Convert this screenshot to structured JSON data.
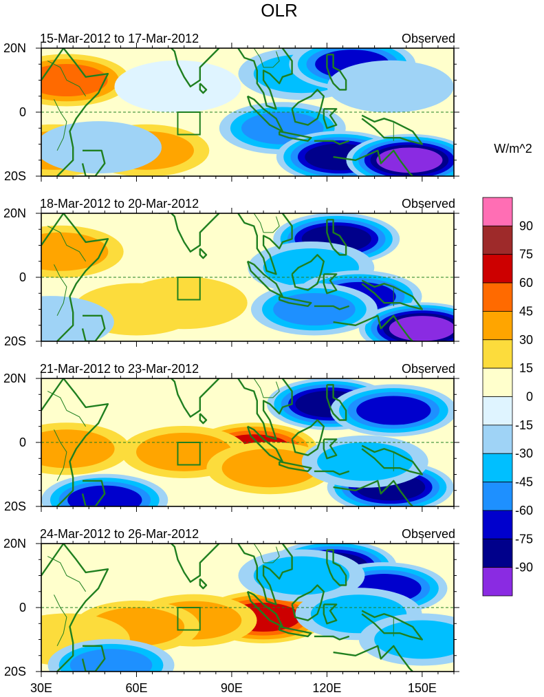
{
  "chart_data": {
    "type": "heatmap",
    "title": "OLR",
    "units": "W/m^2",
    "x_tick_labels": [
      "30E",
      "60E",
      "90E",
      "120E",
      "150E"
    ],
    "x_ticks_deg": [
      30,
      60,
      90,
      120,
      150
    ],
    "xlim_deg": [
      30,
      160
    ],
    "y_tick_labels": [
      "20N",
      "0",
      "20S"
    ],
    "y_ticks_deg": [
      20,
      0,
      -20
    ],
    "ylim_deg": [
      -20,
      20
    ],
    "colorbar": {
      "tick_labels": [
        "90",
        "75",
        "60",
        "45",
        "30",
        "15",
        "0",
        "-15",
        "-30",
        "-45",
        "-60",
        "-75",
        "-90"
      ],
      "levels": [
        -90,
        -75,
        -60,
        -45,
        -30,
        -15,
        0,
        15,
        30,
        45,
        60,
        75,
        90
      ],
      "colors": [
        "#8a2be2",
        "#00008b",
        "#0000cd",
        "#1e90ff",
        "#00bfff",
        "#9fd3f6",
        "#dff4ff",
        "#ffffcc",
        "#fcdc3c",
        "#ffa500",
        "#ff6a00",
        "#cd0000",
        "#9e2a2a",
        "#ff6eb4"
      ]
    },
    "box_region": {
      "lon": [
        73,
        80
      ],
      "lat": [
        -7,
        0
      ]
    },
    "panels": [
      {
        "period": "15-Mar-2012 to 17-Mar-2012",
        "label": "Observed",
        "anomalies": [
          {
            "lon": 38,
            "lat": 10,
            "v": 50
          },
          {
            "lon": 34,
            "lat": -12,
            "v": 35
          },
          {
            "lon": 63,
            "lat": -12,
            "v": 30
          },
          {
            "lon": 48,
            "lat": -11,
            "v": -25
          },
          {
            "lon": 73,
            "lat": 8,
            "v": -12
          },
          {
            "lon": 106,
            "lat": -5,
            "v": -55
          },
          {
            "lon": 112,
            "lat": 12,
            "v": -35
          },
          {
            "lon": 128,
            "lat": 15,
            "v": -70
          },
          {
            "lon": 124,
            "lat": -14,
            "v": -85
          },
          {
            "lon": 146,
            "lat": -15,
            "v": -92
          },
          {
            "lon": 140,
            "lat": 8,
            "v": -20
          }
        ]
      },
      {
        "period": "18-Mar-2012 to 20-Mar-2012",
        "label": "Observed",
        "anomalies": [
          {
            "lon": 36,
            "lat": 8,
            "v": 30
          },
          {
            "lon": 75,
            "lat": -8,
            "v": 25
          },
          {
            "lon": 60,
            "lat": -10,
            "v": 20
          },
          {
            "lon": 33,
            "lat": -14,
            "v": -25
          },
          {
            "lon": 123,
            "lat": 12,
            "v": -75
          },
          {
            "lon": 115,
            "lat": 3,
            "v": -40
          },
          {
            "lon": 130,
            "lat": -6,
            "v": -70
          },
          {
            "lon": 150,
            "lat": -16,
            "v": -95
          },
          {
            "lon": 116,
            "lat": -10,
            "v": -45
          }
        ]
      },
      {
        "period": "21-Mar-2012 to 23-Mar-2012",
        "label": "Observed",
        "anomalies": [
          {
            "lon": 97,
            "lat": -2,
            "v": 70
          },
          {
            "lon": 75,
            "lat": -3,
            "v": 35
          },
          {
            "lon": 102,
            "lat": -8,
            "v": 30
          },
          {
            "lon": 38,
            "lat": -2,
            "v": 30
          },
          {
            "lon": 121,
            "lat": 12,
            "v": -75
          },
          {
            "lon": 141,
            "lat": 10,
            "v": -65
          },
          {
            "lon": 140,
            "lat": -14,
            "v": -80
          },
          {
            "lon": 50,
            "lat": -18,
            "v": -70
          },
          {
            "lon": 132,
            "lat": -6,
            "v": -40
          }
        ]
      },
      {
        "period": "24-Mar-2012 to 26-Mar-2012",
        "label": "Observed",
        "anomalies": [
          {
            "lon": 100,
            "lat": -3,
            "v": 65
          },
          {
            "lon": 78,
            "lat": -4,
            "v": 35
          },
          {
            "lon": 60,
            "lat": -6,
            "v": 30
          },
          {
            "lon": 38,
            "lat": -10,
            "v": 25
          },
          {
            "lon": 122,
            "lat": 13,
            "v": -85
          },
          {
            "lon": 138,
            "lat": 6,
            "v": -70
          },
          {
            "lon": 130,
            "lat": -2,
            "v": -40
          },
          {
            "lon": 112,
            "lat": 10,
            "v": -30
          },
          {
            "lon": 52,
            "lat": -18,
            "v": -50
          },
          {
            "lon": 150,
            "lat": -10,
            "v": -35
          }
        ]
      }
    ]
  }
}
